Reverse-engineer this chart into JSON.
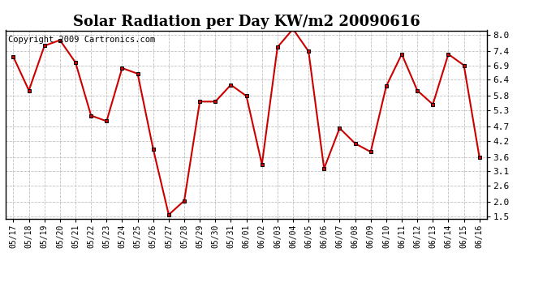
{
  "title": "Solar Radiation per Day KW/m2 20090616",
  "copyright": "Copyright 2009 Cartronics.com",
  "labels": [
    "05/17",
    "05/18",
    "05/19",
    "05/20",
    "05/21",
    "05/22",
    "05/23",
    "05/24",
    "05/25",
    "05/26",
    "05/27",
    "05/28",
    "05/29",
    "05/30",
    "05/31",
    "06/01",
    "06/02",
    "06/03",
    "06/04",
    "06/05",
    "06/06",
    "06/07",
    "06/08",
    "06/09",
    "06/10",
    "06/11",
    "06/12",
    "06/13",
    "06/14",
    "06/15",
    "06/16"
  ],
  "values": [
    7.2,
    6.0,
    7.6,
    7.8,
    7.0,
    5.1,
    4.9,
    6.8,
    6.6,
    3.9,
    1.55,
    2.05,
    5.6,
    5.6,
    6.2,
    5.8,
    3.35,
    7.55,
    8.2,
    7.4,
    3.2,
    4.65,
    4.1,
    3.8,
    6.15,
    7.3,
    6.0,
    5.5,
    7.3,
    6.9,
    3.6
  ],
  "line_color": "#cc0000",
  "marker_color": "#000000",
  "background_color": "#ffffff",
  "grid_color": "#c0c0c0",
  "yticks": [
    1.5,
    2.0,
    2.6,
    3.1,
    3.6,
    4.2,
    4.7,
    5.3,
    5.8,
    6.4,
    6.9,
    7.4,
    8.0
  ],
  "ylim": [
    1.4,
    8.15
  ],
  "title_fontsize": 13,
  "copyright_fontsize": 7.5
}
